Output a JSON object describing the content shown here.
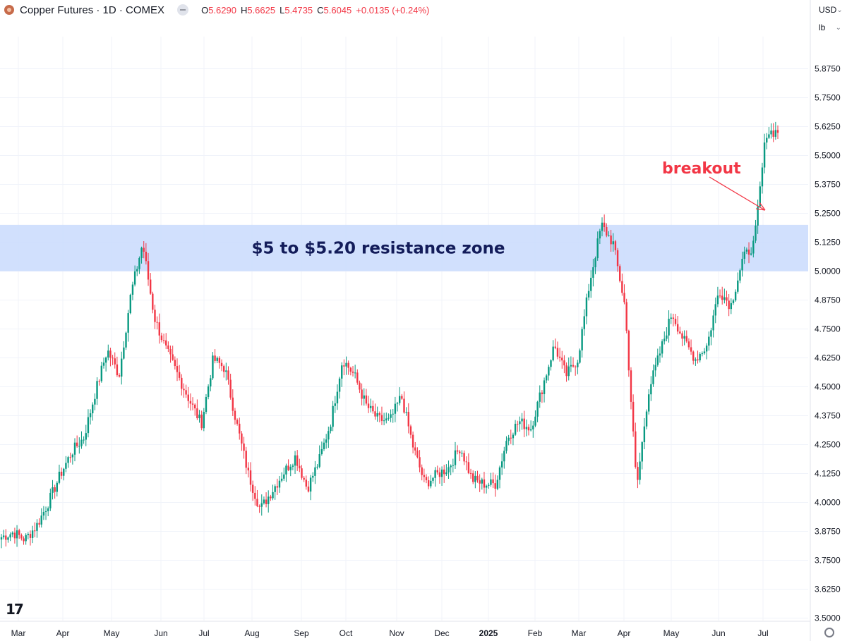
{
  "header": {
    "title": "Copper Futures · 1D · COMEX",
    "ohlc": [
      {
        "label": "O",
        "value": "5.6290"
      },
      {
        "label": "H",
        "value": "5.6625"
      },
      {
        "label": "L",
        "value": "5.4735"
      },
      {
        "label": "C",
        "value": "5.6045"
      },
      {
        "label": "",
        "value": "+0.0135 (+0.24%)"
      }
    ]
  },
  "controls": {
    "currency": "USD",
    "unit": "lb"
  },
  "colors": {
    "up": "#089981",
    "down": "#f23645",
    "zone": "#c9dafd",
    "annotation": "#f23645",
    "zone_text": "#131c5a"
  },
  "chart_data": {
    "type": "candlestick",
    "title": "",
    "xlabel": "",
    "ylabel": "",
    "ylim": [
      3.5,
      5.95
    ],
    "y_ticks": [
      "3.5000",
      "3.6250",
      "3.7500",
      "3.8750",
      "4.0000",
      "4.1250",
      "4.2500",
      "4.3750",
      "4.5000",
      "4.6250",
      "4.7500",
      "4.8750",
      "5.0000",
      "5.1250",
      "5.2500",
      "5.3750",
      "5.5000",
      "5.6250",
      "5.7500",
      "5.8750"
    ],
    "x_ticks": [
      "Mar",
      "Apr",
      "May",
      "Jun",
      "Jul",
      "Aug",
      "Sep",
      "Oct",
      "Nov",
      "Dec",
      "2025",
      "Feb",
      "Mar",
      "Apr",
      "May",
      "Jun",
      "Jul"
    ],
    "grid": true,
    "series": [
      {
        "name": "Copper Futures",
        "close_path": [
          [
            "Mar",
            3.85
          ],
          [
            "Mar",
            3.87
          ],
          [
            "Mar",
            3.84
          ],
          [
            "Mar",
            3.9
          ],
          [
            "Apr",
            4.0
          ],
          [
            "Apr",
            4.12
          ],
          [
            "Apr",
            4.22
          ],
          [
            "Apr",
            4.28
          ],
          [
            "May",
            4.48
          ],
          [
            "May",
            4.66
          ],
          [
            "May",
            4.55
          ],
          [
            "May",
            4.9
          ],
          [
            "May",
            5.12
          ],
          [
            "May",
            4.8
          ],
          [
            "Jun",
            4.66
          ],
          [
            "Jun",
            4.55
          ],
          [
            "Jun",
            4.44
          ],
          [
            "Jul",
            4.34
          ],
          [
            "Jul",
            4.62
          ],
          [
            "Jul",
            4.58
          ],
          [
            "Jul",
            4.34
          ],
          [
            "Aug",
            4.12
          ],
          [
            "Aug",
            3.97
          ],
          [
            "Aug",
            4.05
          ],
          [
            "Sep",
            4.13
          ],
          [
            "Sep",
            4.2
          ],
          [
            "Sep",
            4.06
          ],
          [
            "Sep",
            4.18
          ],
          [
            "Sep",
            4.35
          ],
          [
            "Oct",
            4.62
          ],
          [
            "Oct",
            4.55
          ],
          [
            "Oct",
            4.42
          ],
          [
            "Oct",
            4.36
          ],
          [
            "Oct",
            4.35
          ],
          [
            "Nov",
            4.46
          ],
          [
            "Nov",
            4.24
          ],
          [
            "Nov",
            4.08
          ],
          [
            "Nov",
            4.12
          ],
          [
            "Dec",
            4.15
          ],
          [
            "Dec",
            4.24
          ],
          [
            "Dec",
            4.1
          ],
          [
            "Dec",
            4.08
          ],
          [
            "2025",
            4.08
          ],
          [
            "2025",
            4.28
          ],
          [
            "2025",
            4.35
          ],
          [
            "2025",
            4.32
          ],
          [
            "Feb",
            4.5
          ],
          [
            "Feb",
            4.68
          ],
          [
            "Feb",
            4.55
          ],
          [
            "Mar",
            4.62
          ],
          [
            "Mar",
            4.95
          ],
          [
            "Mar",
            5.2
          ],
          [
            "Mar",
            5.12
          ],
          [
            "Apr",
            4.85
          ],
          [
            "Apr",
            4.06
          ],
          [
            "Apr",
            4.48
          ],
          [
            "May",
            4.65
          ],
          [
            "May",
            4.82
          ],
          [
            "May",
            4.7
          ],
          [
            "May",
            4.62
          ],
          [
            "Jun",
            4.68
          ],
          [
            "Jun",
            4.92
          ],
          [
            "Jun",
            4.85
          ],
          [
            "Jul",
            5.05
          ],
          [
            "Jul",
            5.12
          ],
          [
            "Jul",
            5.6
          ],
          [
            "Jul",
            5.6045
          ]
        ]
      }
    ],
    "annotations": [
      {
        "type": "band",
        "y_range": [
          5.0,
          5.2
        ],
        "label": "$5 to $5.20 resistance zone"
      },
      {
        "type": "arrow",
        "label": "breakout"
      }
    ]
  }
}
